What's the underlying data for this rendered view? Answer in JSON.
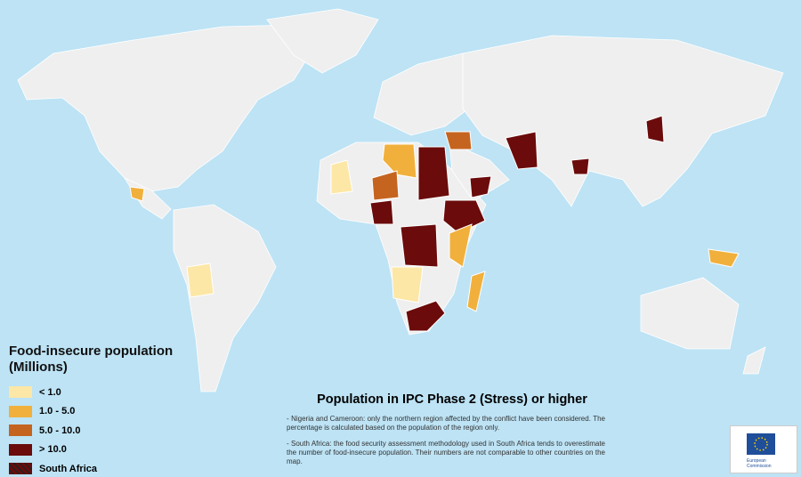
{
  "legend": {
    "title": [
      "Food-insecure population",
      "(Millions)"
    ],
    "items": [
      {
        "label": "< 1.0",
        "color": "#fde7a6"
      },
      {
        "label": "1.0  -  5.0",
        "color": "#f1b03c"
      },
      {
        "label": "5.0  -  10.0",
        "color": "#c5641f"
      },
      {
        "label": "> 10.0",
        "color": "#6b0b0b"
      },
      {
        "label": "South Africa",
        "color": "#6b0b0b",
        "hatched": true
      }
    ]
  },
  "title": "Population in IPC Phase 2 (Stress) or higher",
  "notes": [
    "- Nigeria and Cameroon: only the northern region affected by the conflict have been considered. The percentage is calculated based on the population of the region only.",
    "- South Africa: the food security assessment methodology used in South Africa tends to overestimate the number of food-insecure population. Their numbers are not comparable to other countries on the map."
  ],
  "logo": "European Commission"
}
